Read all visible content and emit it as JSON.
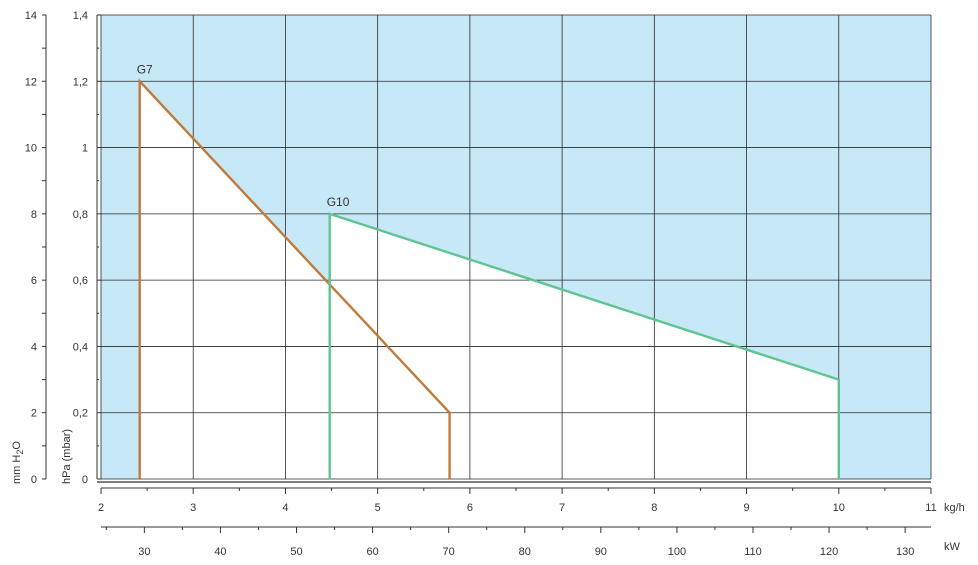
{
  "chart_data": {
    "type": "area",
    "x_primary": {
      "unit_label": "kg/h",
      "range": [
        2,
        11
      ],
      "ticks": [
        "2",
        "3",
        "4",
        "5",
        "6",
        "7",
        "8",
        "9",
        "10",
        "11"
      ]
    },
    "x_secondary": {
      "unit_label": "kW",
      "range": [
        24.3,
        133.4
      ],
      "ticks": [
        "30",
        "40",
        "50",
        "60",
        "70",
        "80",
        "90",
        "100",
        "110",
        "120",
        "130"
      ]
    },
    "y_primary": {
      "label": "hPa (mbar)",
      "range": [
        0,
        1.4
      ],
      "ticks": [
        "0",
        "0,2",
        "0,4",
        "0,6",
        "0,8",
        "1",
        "1,2",
        "1,4"
      ]
    },
    "y_secondary": {
      "label_parts": [
        "mm H",
        "2",
        "O"
      ],
      "range": [
        0,
        14
      ],
      "ticks": [
        "0",
        "2",
        "4",
        "6",
        "8",
        "10",
        "12",
        "14"
      ]
    },
    "series": [
      {
        "name": "G7",
        "color": "#c07a3a",
        "points": [
          [
            2.42,
            0
          ],
          [
            2.42,
            1.2
          ],
          [
            5.78,
            0.2
          ],
          [
            5.78,
            0
          ]
        ]
      },
      {
        "name": "G10",
        "color": "#5fc48f",
        "points": [
          [
            4.48,
            0
          ],
          [
            4.48,
            0.8
          ],
          [
            10.0,
            0.3
          ],
          [
            10.0,
            0
          ]
        ]
      }
    ],
    "background_color": "#c6e8f7",
    "grid": true
  }
}
